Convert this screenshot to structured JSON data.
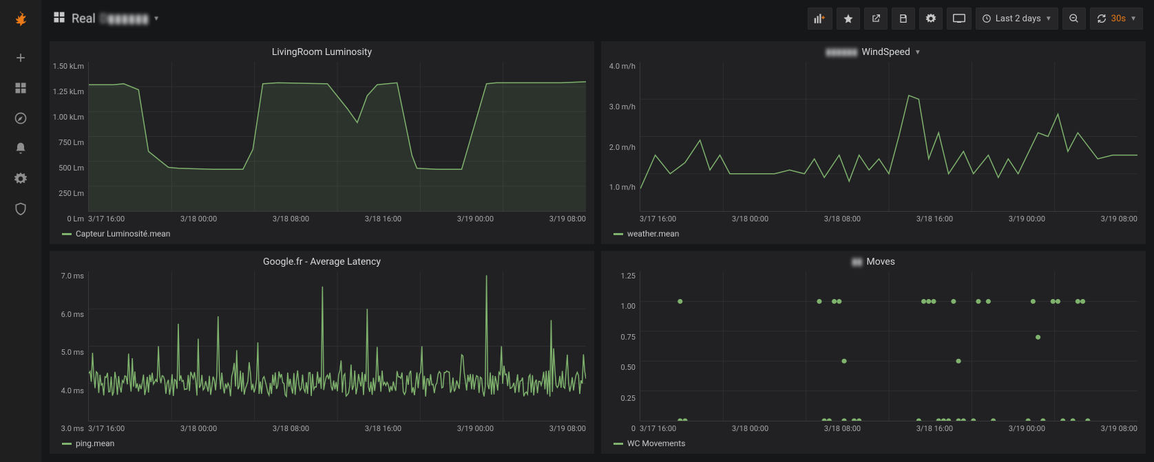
{
  "dashboard": {
    "title_prefix": "Real",
    "title_blur": "D▮▮▮▮▮▮"
  },
  "toolbar": {
    "timerange": "Last 2 days",
    "refresh_interval": "30s"
  },
  "colors": {
    "panel_bg": "#212124",
    "body_bg": "#161719",
    "series": "#7eb26d",
    "grid": "#2f2f31",
    "axis_text": "#a8a8a8",
    "accent": "#eb7b18"
  },
  "x_ticks": [
    "3/17 16:00",
    "3/18 00:00",
    "3/18 08:00",
    "3/18 16:00",
    "3/19 00:00",
    "3/19 08:00"
  ],
  "panels": {
    "luminosity": {
      "title": "LivingRoom Luminosity",
      "legend": "Capteur Luminosité.mean",
      "type": "area",
      "y_ticks": [
        "1.50 kLm",
        "1.25 kLm",
        "1.00 kLm",
        "750 Lm",
        "500 Lm",
        "250 Lm",
        "0 Lm"
      ],
      "ylim": [
        0,
        1500
      ],
      "values": [
        [
          0,
          1270
        ],
        [
          5,
          1270
        ],
        [
          7,
          1280
        ],
        [
          10,
          1220
        ],
        [
          12,
          600
        ],
        [
          13,
          560
        ],
        [
          14,
          520
        ],
        [
          16,
          440
        ],
        [
          18,
          430
        ],
        [
          25,
          420
        ],
        [
          31,
          420
        ],
        [
          33,
          620
        ],
        [
          35,
          1280
        ],
        [
          38,
          1290
        ],
        [
          48,
          1280
        ],
        [
          52,
          1030
        ],
        [
          54,
          890
        ],
        [
          56,
          1160
        ],
        [
          58,
          1270
        ],
        [
          62,
          1290
        ],
        [
          65,
          560
        ],
        [
          66,
          430
        ],
        [
          70,
          420
        ],
        [
          75,
          420
        ],
        [
          80,
          1280
        ],
        [
          82,
          1290
        ],
        [
          95,
          1290
        ],
        [
          100,
          1300
        ]
      ]
    },
    "windspeed": {
      "title_prefix_blur": "▮▮▮▮▮▮",
      "title": "WindSpeed",
      "legend": "weather.mean",
      "type": "line",
      "y_ticks": [
        "4.0 m/h",
        "3.0 m/h",
        "2.0 m/h",
        "1.0 m/h",
        ""
      ],
      "ylim": [
        0,
        4
      ],
      "values": [
        [
          0,
          0.6
        ],
        [
          3,
          1.5
        ],
        [
          6,
          1.0
        ],
        [
          9,
          1.3
        ],
        [
          12,
          1.9
        ],
        [
          14,
          1.1
        ],
        [
          16,
          1.5
        ],
        [
          18,
          1.0
        ],
        [
          22,
          1.0
        ],
        [
          24,
          1.0
        ],
        [
          27,
          1.0
        ],
        [
          30,
          1.1
        ],
        [
          33,
          1.0
        ],
        [
          35,
          1.4
        ],
        [
          37,
          0.9
        ],
        [
          40,
          1.5
        ],
        [
          42,
          0.8
        ],
        [
          44,
          1.5
        ],
        [
          46,
          1.1
        ],
        [
          48,
          1.4
        ],
        [
          50,
          1.0
        ],
        [
          52,
          2.0
        ],
        [
          54,
          3.1
        ],
        [
          56,
          3.0
        ],
        [
          58,
          1.4
        ],
        [
          60,
          2.1
        ],
        [
          62,
          1.0
        ],
        [
          65,
          1.6
        ],
        [
          67,
          1.0
        ],
        [
          70,
          1.5
        ],
        [
          72,
          0.9
        ],
        [
          74,
          1.4
        ],
        [
          76,
          1.0
        ],
        [
          80,
          2.1
        ],
        [
          82,
          2.0
        ],
        [
          84,
          2.6
        ],
        [
          86,
          1.6
        ],
        [
          88,
          2.1
        ],
        [
          92,
          1.4
        ],
        [
          95,
          1.5
        ],
        [
          100,
          1.5
        ]
      ]
    },
    "latency": {
      "title": "Google.fr - Average Latency",
      "legend": "ping.mean",
      "type": "dense-line",
      "y_ticks": [
        "7.0 ms",
        "6.0 ms",
        "5.0 ms",
        "4.0 ms",
        "3.0 ms"
      ],
      "ylim": [
        3,
        7
      ],
      "baseline": 4.0,
      "jitter_amp": 0.35,
      "spikes": [
        [
          8,
          4.8
        ],
        [
          14,
          5.0
        ],
        [
          18,
          5.6
        ],
        [
          22,
          5.2
        ],
        [
          26,
          5.8
        ],
        [
          34,
          5.1
        ],
        [
          47,
          6.6
        ],
        [
          56,
          6.0
        ],
        [
          67,
          5.0
        ],
        [
          80,
          6.9
        ],
        [
          83,
          5.0
        ],
        [
          93,
          5.7
        ]
      ]
    },
    "moves": {
      "title_prefix_blur": "▮▮",
      "title": "Moves",
      "legend": "WC Movements",
      "type": "scatter",
      "y_ticks": [
        "1.25",
        "1.00",
        "0.75",
        "0.50",
        "0.25",
        "0"
      ],
      "ylim": [
        0,
        1.25
      ],
      "points": [
        [
          8,
          1.0
        ],
        [
          8,
          0.0
        ],
        [
          9,
          0.0
        ],
        [
          36,
          1.0
        ],
        [
          37,
          0.0
        ],
        [
          38,
          0.0
        ],
        [
          39,
          1.0
        ],
        [
          40,
          1.0
        ],
        [
          41,
          0.5
        ],
        [
          41,
          0.0
        ],
        [
          43,
          0.0
        ],
        [
          44,
          0.0
        ],
        [
          56,
          0.0
        ],
        [
          57,
          1.0
        ],
        [
          58,
          1.0
        ],
        [
          59,
          1.0
        ],
        [
          60,
          0.0
        ],
        [
          61,
          0.0
        ],
        [
          62,
          0.0
        ],
        [
          63,
          1.0
        ],
        [
          64,
          0.5
        ],
        [
          64,
          0.0
        ],
        [
          65,
          0.0
        ],
        [
          67,
          0.0
        ],
        [
          68,
          1.0
        ],
        [
          70,
          1.0
        ],
        [
          71,
          0.0
        ],
        [
          78,
          0.0
        ],
        [
          79,
          1.0
        ],
        [
          80,
          0.7
        ],
        [
          81,
          0.0
        ],
        [
          83,
          1.0
        ],
        [
          84,
          1.0
        ],
        [
          85,
          0.0
        ],
        [
          87,
          0.0
        ],
        [
          88,
          1.0
        ],
        [
          89,
          1.0
        ],
        [
          90,
          0.0
        ]
      ]
    }
  }
}
